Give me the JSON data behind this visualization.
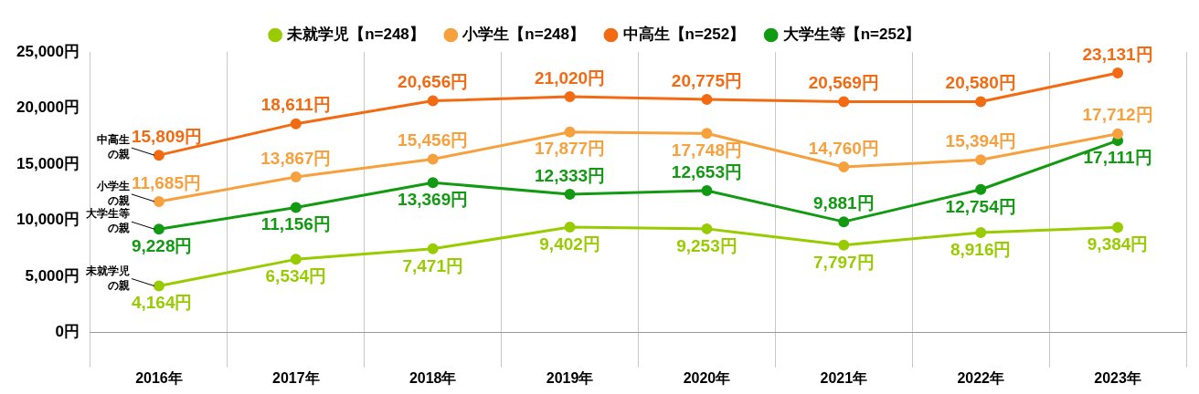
{
  "chart_data": {
    "type": "line",
    "categories": [
      "2016年",
      "2017年",
      "2018年",
      "2019年",
      "2020年",
      "2021年",
      "2022年",
      "2023年"
    ],
    "series": [
      {
        "name": "未就学児【n=248】",
        "color": "#99cc00",
        "values": [
          4164,
          6534,
          7471,
          9402,
          9253,
          7797,
          8916,
          9384
        ],
        "value_labels": [
          "4,164円",
          "6,534円",
          "7,471円",
          "9,402円",
          "9,253円",
          "7,797円",
          "8,916円",
          "9,384円"
        ]
      },
      {
        "name": "小学生【n=248】",
        "color": "#f7a13e",
        "values": [
          11685,
          13867,
          15456,
          17877,
          17748,
          14760,
          15394,
          17712
        ],
        "value_labels": [
          "11,685円",
          "13,867円",
          "15,456円",
          "17,877円",
          "17,748円",
          "14,760円",
          "15,394円",
          "17,712円"
        ]
      },
      {
        "name": "中高生【n=252】",
        "color": "#f26b12",
        "values": [
          15809,
          18611,
          20656,
          21020,
          20775,
          20569,
          20580,
          23131
        ],
        "value_labels": [
          "15,809円",
          "18,611円",
          "20,656円",
          "21,020円",
          "20,775円",
          "20,569円",
          "20,580円",
          "23,131円"
        ]
      },
      {
        "name": "大学生等【n=252】",
        "color": "#129a12",
        "values": [
          9228,
          11156,
          13369,
          12333,
          12653,
          9881,
          12754,
          17111
        ],
        "value_labels": [
          "9,228円",
          "11,156円",
          "13,369円",
          "12,333円",
          "12,653円",
          "9,881円",
          "12,754円",
          "17,111円"
        ]
      }
    ],
    "ylim": [
      0,
      25000
    ],
    "yticks": [
      {
        "value": 0,
        "label": "0円"
      },
      {
        "value": 5000,
        "label": "5,000円"
      },
      {
        "value": 10000,
        "label": "10,000円"
      },
      {
        "value": 15000,
        "label": "15,000円"
      },
      {
        "value": 20000,
        "label": "20,000円"
      },
      {
        "value": 25000,
        "label": "25,000円"
      }
    ],
    "grid": "x",
    "legend": "top",
    "marker": "circle",
    "line_style": "solid",
    "annotations": [
      {
        "text": "中高生の親",
        "x": "2016年",
        "y": 15809
      },
      {
        "text": "小学生の親",
        "x": "2016年",
        "y": 11685
      },
      {
        "text": "大学生等の親",
        "x": "2016年",
        "y": 9228
      },
      {
        "text": "未就学児の親",
        "x": "2016年",
        "y": 4164
      }
    ]
  }
}
